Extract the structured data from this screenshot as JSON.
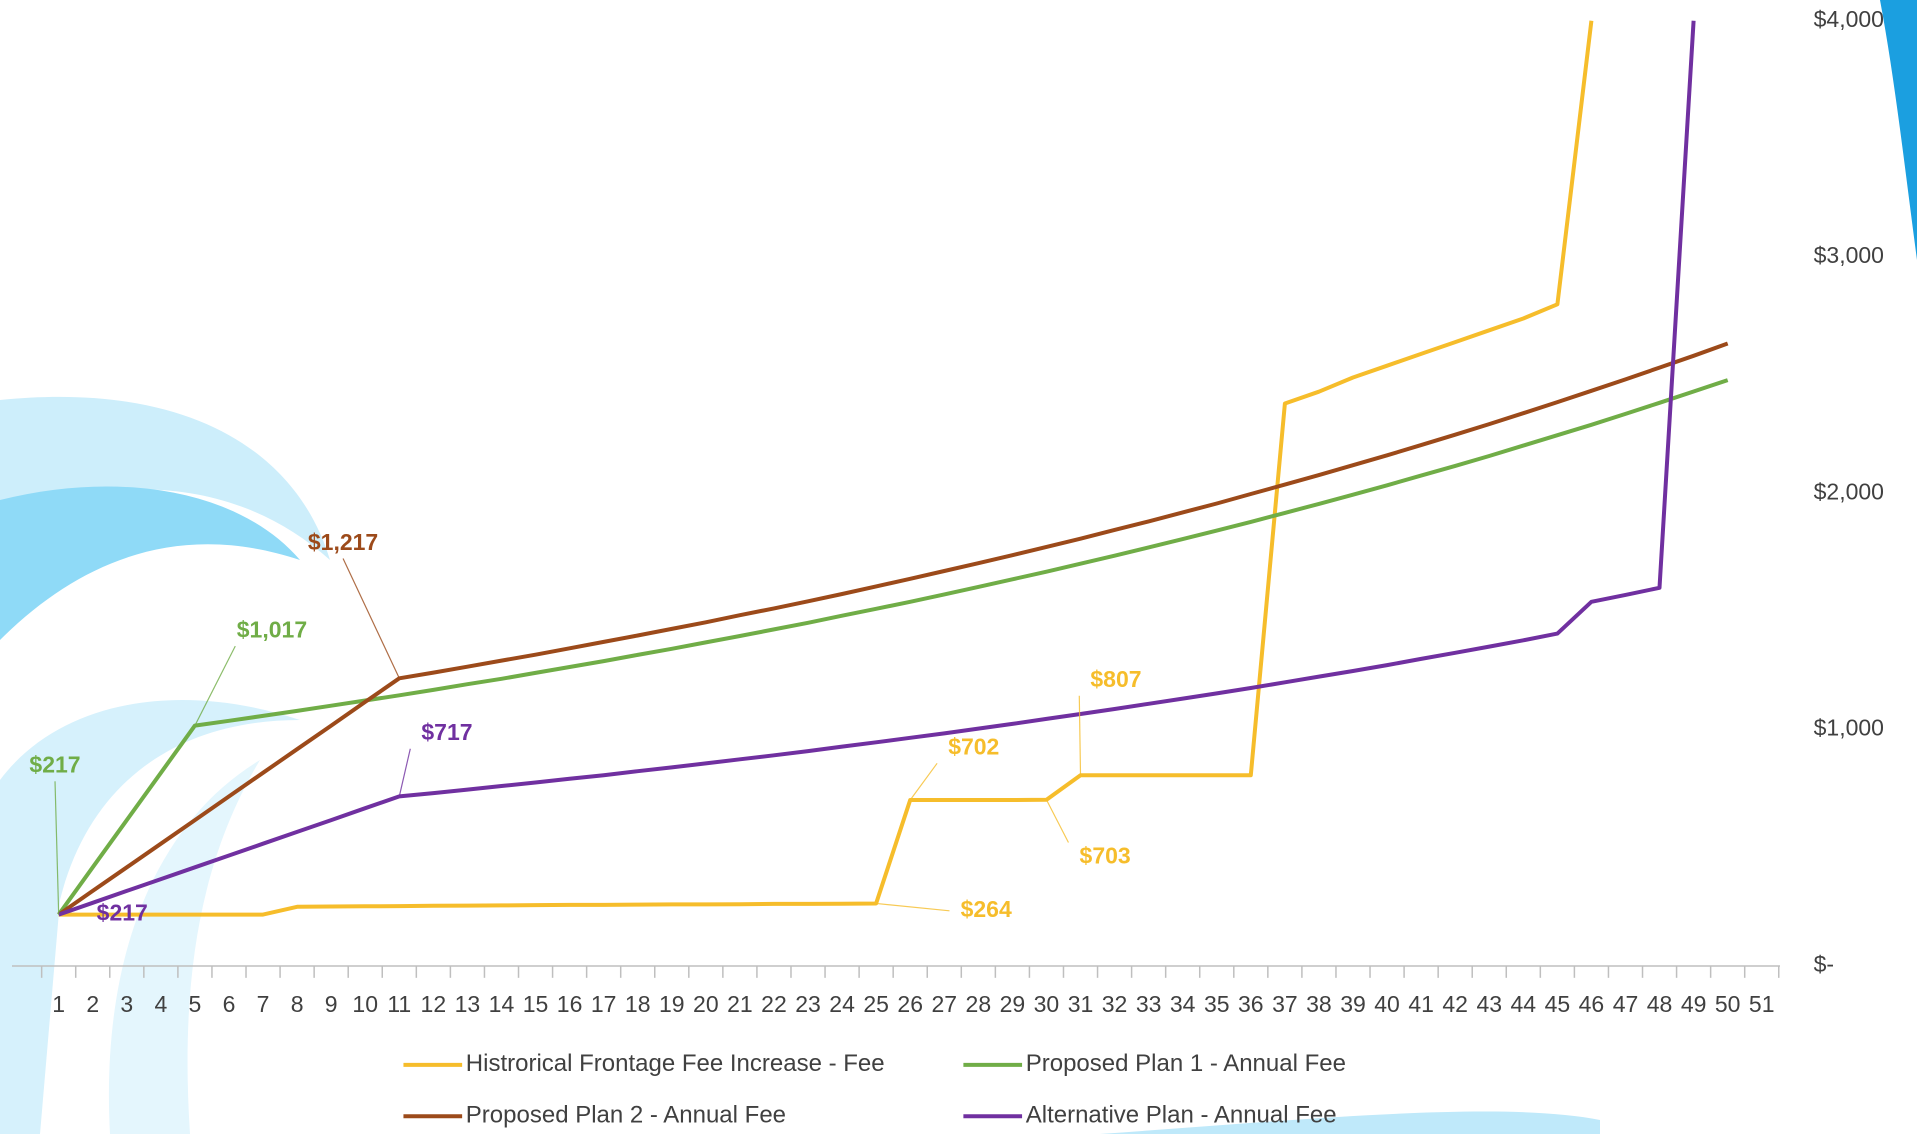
{
  "chart_data": {
    "type": "line",
    "categories": [
      1,
      2,
      3,
      4,
      5,
      6,
      7,
      8,
      9,
      10,
      11,
      12,
      13,
      14,
      15,
      16,
      17,
      18,
      19,
      20,
      21,
      22,
      23,
      24,
      25,
      26,
      27,
      28,
      29,
      30,
      31,
      32,
      33,
      34,
      35,
      36,
      37,
      38,
      39,
      40,
      41,
      42,
      43,
      44,
      45,
      46,
      47,
      48,
      49,
      50,
      51
    ],
    "ylim": [
      0,
      4000
    ],
    "yticks": [
      {
        "value": 0,
        "label": "$-"
      },
      {
        "value": 1000,
        "label": "$1,000"
      },
      {
        "value": 2000,
        "label": "$2,000"
      },
      {
        "value": 3000,
        "label": "$3,000"
      },
      {
        "value": 4000,
        "label": "$4,000"
      }
    ],
    "grid": false,
    "legend": "bottom",
    "series": [
      {
        "name": "Histrorical Frontage Fee Increase - Fee",
        "color": "#f6bd2b",
        "values": [
          217,
          217,
          217,
          217,
          217,
          217,
          217,
          250,
          251,
          252,
          253,
          254,
          255,
          256,
          257,
          258,
          258,
          259,
          260,
          260,
          261,
          262,
          262,
          263,
          264,
          702,
          702,
          702,
          702,
          703,
          807,
          807,
          807,
          807,
          807,
          807,
          2380,
          2430,
          2490,
          2540,
          2590,
          2640,
          2690,
          2740,
          2800,
          4000,
          null,
          null,
          null,
          null,
          null
        ],
        "value_labels": [
          null,
          null,
          null,
          null,
          null,
          null,
          null,
          null,
          null,
          null,
          null,
          null,
          null,
          null,
          null,
          null,
          null,
          null,
          null,
          null,
          null,
          null,
          null,
          null,
          "$264",
          "$702",
          null,
          null,
          null,
          "$703",
          "$807",
          null,
          null,
          null,
          null,
          null,
          null,
          null,
          null,
          null,
          null,
          null,
          null,
          null,
          null,
          null,
          null,
          null,
          null,
          null,
          null
        ]
      },
      {
        "name": "Proposed Plan 1 - Annual Fee",
        "color": "#70ad47",
        "values": [
          217,
          417,
          617,
          817,
          1017,
          1037,
          1058,
          1079,
          1101,
          1123,
          1145,
          1168,
          1192,
          1215,
          1240,
          1265,
          1290,
          1316,
          1342,
          1369,
          1396,
          1424,
          1452,
          1482,
          1511,
          1541,
          1572,
          1604,
          1636,
          1668,
          1702,
          1736,
          1771,
          1806,
          1842,
          1879,
          1917,
          1955,
          1994,
          2034,
          2075,
          2116,
          2158,
          2202,
          2246,
          2290,
          2336,
          2383,
          2431,
          2479,
          null
        ],
        "value_labels": [
          "$217",
          null,
          null,
          null,
          "$1,017",
          null,
          null,
          null,
          null,
          null,
          null,
          null,
          null,
          null,
          null,
          null,
          null,
          null,
          null,
          null,
          null,
          null,
          null,
          null,
          null,
          null,
          null,
          null,
          null,
          null,
          null,
          null,
          null,
          null,
          null,
          null,
          null,
          null,
          null,
          null,
          null,
          null,
          null,
          null,
          null,
          null,
          null,
          null,
          null,
          null,
          null
        ]
      },
      {
        "name": "Proposed Plan 2 - Annual Fee",
        "color": "#9c4a1a",
        "values": [
          217,
          317,
          417,
          517,
          617,
          717,
          817,
          917,
          1017,
          1117,
          1217,
          1241,
          1266,
          1292,
          1317,
          1344,
          1371,
          1398,
          1426,
          1454,
          1484,
          1513,
          1543,
          1574,
          1606,
          1638,
          1671,
          1704,
          1738,
          1773,
          1808,
          1845,
          1881,
          1919,
          1957,
          1997,
          2037,
          2077,
          2119,
          2161,
          2204,
          2248,
          2293,
          2339,
          2386,
          2434,
          2482,
          2532,
          2582,
          2634,
          null
        ],
        "value_labels": [
          null,
          null,
          null,
          null,
          null,
          null,
          null,
          null,
          null,
          null,
          "$1,217",
          null,
          null,
          null,
          null,
          null,
          null,
          null,
          null,
          null,
          null,
          null,
          null,
          null,
          null,
          null,
          null,
          null,
          null,
          null,
          null,
          null,
          null,
          null,
          null,
          null,
          null,
          null,
          null,
          null,
          null,
          null,
          null,
          null,
          null,
          null,
          null,
          null,
          null,
          null,
          null
        ]
      },
      {
        "name": "Alternative Plan - Annual Fee",
        "color": "#7030a0",
        "values": [
          217,
          267,
          317,
          367,
          417,
          467,
          517,
          567,
          617,
          667,
          717,
          731,
          746,
          761,
          776,
          792,
          807,
          824,
          840,
          857,
          874,
          891,
          909,
          928,
          946,
          965,
          984,
          1004,
          1024,
          1045,
          1066,
          1087,
          1109,
          1131,
          1153,
          1176,
          1200,
          1224,
          1248,
          1273,
          1299,
          1325,
          1351,
          1378,
          1406,
          1541,
          1570,
          1600,
          4000,
          null,
          null
        ],
        "value_labels": [
          "$217",
          null,
          null,
          null,
          null,
          null,
          null,
          null,
          null,
          null,
          "$717",
          null,
          null,
          null,
          null,
          null,
          null,
          null,
          null,
          null,
          null,
          null,
          null,
          null,
          null,
          null,
          null,
          null,
          null,
          null,
          null,
          null,
          null,
          null,
          null,
          null,
          null,
          null,
          null,
          null,
          null,
          null,
          null,
          null,
          null,
          null,
          null,
          null,
          null,
          null,
          null
        ]
      }
    ]
  }
}
